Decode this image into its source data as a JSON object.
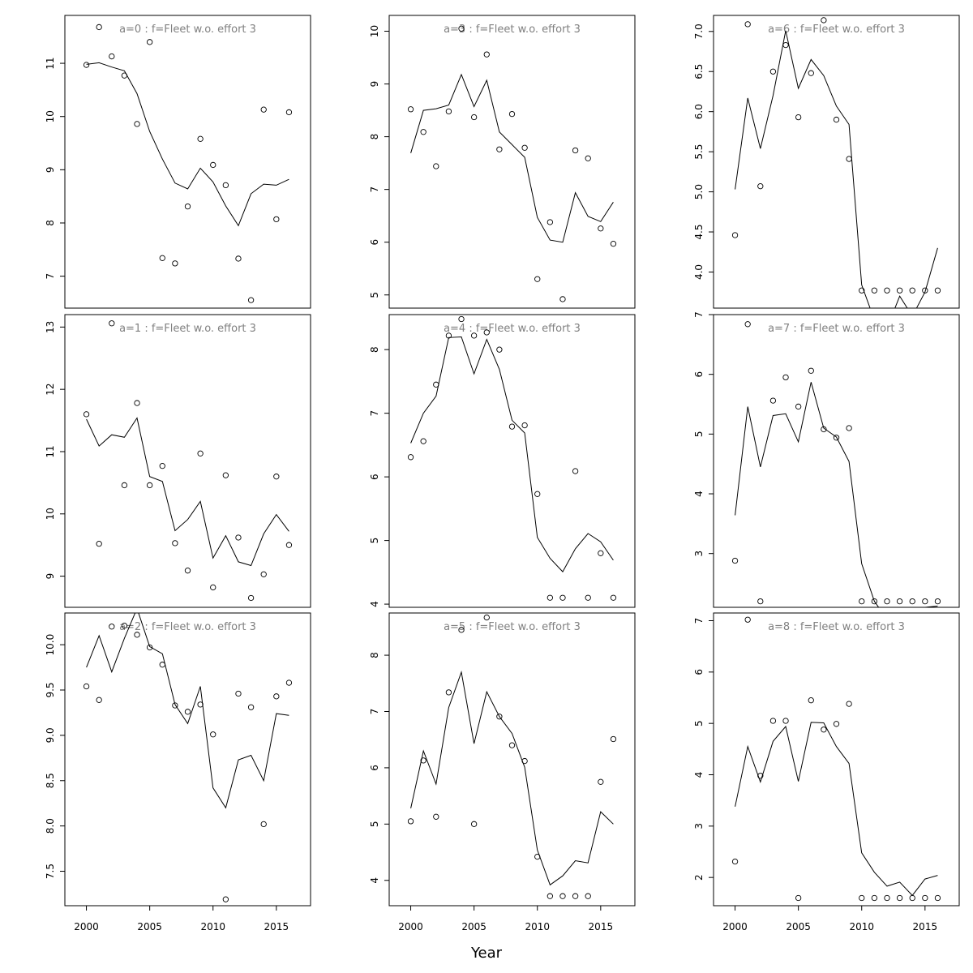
{
  "figure": {
    "xlabel": "Year"
  },
  "chart_data": [
    {
      "type": "scatter",
      "title": "a=0  :  f=Fleet w.o. effort 3",
      "x": [
        2000,
        2001,
        2002,
        2003,
        2004,
        2005,
        2006,
        2007,
        2008,
        2009,
        2010,
        2011,
        2012,
        2013,
        2014,
        2015,
        2016
      ],
      "ylim": [
        6.4,
        11.9
      ],
      "yticks": [
        7,
        8,
        9,
        10,
        11
      ],
      "xticks": [
        2000,
        2005,
        2010,
        2015
      ],
      "series": [
        {
          "kind": "points",
          "values": [
            10.97,
            11.68,
            11.13,
            10.77,
            9.86,
            11.4,
            7.34,
            7.24,
            8.31,
            9.58,
            9.09,
            8.71,
            7.33,
            6.55,
            10.13,
            8.07,
            10.08
          ]
        },
        {
          "kind": "line",
          "values": [
            10.98,
            11.01,
            10.93,
            10.86,
            10.43,
            9.72,
            9.2,
            8.75,
            8.64,
            9.03,
            8.77,
            8.32,
            7.95,
            8.55,
            8.73,
            8.71,
            8.82
          ]
        }
      ]
    },
    {
      "type": "scatter",
      "title": "a=1  :  f=Fleet w.o. effort 3",
      "x": [
        2000,
        2001,
        2002,
        2003,
        2004,
        2005,
        2006,
        2007,
        2008,
        2009,
        2010,
        2011,
        2012,
        2013,
        2014,
        2015,
        2016
      ],
      "ylim": [
        8.5,
        13.2
      ],
      "yticks": [
        9,
        10,
        11,
        12,
        13
      ],
      "xticks": [
        2000,
        2005,
        2010,
        2015
      ],
      "series": [
        {
          "kind": "points",
          "values": [
            11.6,
            9.52,
            13.06,
            10.46,
            11.78,
            10.46,
            10.77,
            9.53,
            9.09,
            10.97,
            8.82,
            10.62,
            9.62,
            8.65,
            9.03,
            10.6,
            9.5
          ]
        },
        {
          "kind": "line",
          "values": [
            11.52,
            11.09,
            11.27,
            11.23,
            11.54,
            10.6,
            10.52,
            9.73,
            9.91,
            10.2,
            9.29,
            9.65,
            9.23,
            9.17,
            9.68,
            9.99,
            9.72
          ]
        }
      ]
    },
    {
      "type": "scatter",
      "title": "a=2  :  f=Fleet w.o. effort 3",
      "x": [
        2000,
        2001,
        2002,
        2003,
        2004,
        2005,
        2006,
        2007,
        2008,
        2009,
        2010,
        2011,
        2012,
        2013,
        2014,
        2015,
        2016
      ],
      "ylim": [
        7.12,
        10.35
      ],
      "yticks": [
        7.5,
        8.0,
        8.5,
        9.0,
        9.5,
        10.0
      ],
      "xticks": [
        2000,
        2005,
        2010,
        2015
      ],
      "series": [
        {
          "kind": "points",
          "values": [
            9.54,
            9.39,
            10.2,
            10.21,
            10.11,
            9.97,
            9.78,
            9.33,
            9.26,
            9.34,
            9.01,
            7.19,
            9.46,
            9.31,
            8.02,
            9.43,
            9.58
          ]
        },
        {
          "kind": "line",
          "values": [
            9.75,
            10.1,
            9.7,
            10.07,
            10.4,
            9.98,
            9.9,
            9.34,
            9.13,
            9.54,
            8.42,
            8.2,
            8.73,
            8.78,
            8.5,
            9.24,
            9.22
          ]
        }
      ]
    },
    {
      "type": "scatter",
      "title": "a=3  :  f=Fleet w.o. effort 3",
      "x": [
        2000,
        2001,
        2002,
        2003,
        2004,
        2005,
        2006,
        2007,
        2008,
        2009,
        2010,
        2011,
        2012,
        2013,
        2014,
        2015,
        2016
      ],
      "ylim": [
        4.75,
        10.3
      ],
      "yticks": [
        5,
        6,
        7,
        8,
        9,
        10
      ],
      "xticks": [
        2000,
        2005,
        2010,
        2015
      ],
      "series": [
        {
          "kind": "points",
          "values": [
            8.52,
            8.09,
            7.44,
            8.48,
            10.05,
            8.37,
            9.56,
            7.76,
            8.43,
            7.79,
            5.3,
            6.38,
            4.92,
            7.74,
            7.59,
            6.26,
            5.97
          ]
        },
        {
          "kind": "line",
          "values": [
            7.69,
            8.5,
            8.53,
            8.6,
            9.18,
            8.57,
            9.07,
            8.09,
            7.85,
            7.61,
            6.47,
            6.04,
            6.0,
            6.94,
            6.49,
            6.39,
            6.76
          ]
        }
      ]
    },
    {
      "type": "scatter",
      "title": "a=4  :  f=Fleet w.o. effort 3",
      "x": [
        2000,
        2001,
        2002,
        2003,
        2004,
        2005,
        2006,
        2007,
        2008,
        2009,
        2010,
        2011,
        2012,
        2013,
        2014,
        2015,
        2016
      ],
      "ylim": [
        3.95,
        8.55
      ],
      "yticks": [
        4,
        5,
        6,
        7,
        8
      ],
      "xticks": [
        2000,
        2005,
        2010,
        2015
      ],
      "series": [
        {
          "kind": "points",
          "values": [
            6.31,
            6.56,
            7.45,
            8.22,
            8.48,
            8.22,
            8.27,
            8.0,
            6.79,
            6.81,
            5.73,
            4.1,
            4.1,
            6.09,
            4.1,
            4.8,
            4.1
          ]
        },
        {
          "kind": "line",
          "values": [
            6.53,
            7.0,
            7.27,
            8.19,
            8.2,
            7.62,
            8.16,
            7.69,
            6.89,
            6.69,
            5.05,
            4.72,
            4.51,
            4.87,
            5.11,
            4.98,
            4.69
          ]
        }
      ]
    },
    {
      "type": "scatter",
      "title": "a=5  :  f=Fleet w.o. effort 3",
      "x": [
        2000,
        2001,
        2002,
        2003,
        2004,
        2005,
        2006,
        2007,
        2008,
        2009,
        2010,
        2011,
        2012,
        2013,
        2014,
        2015,
        2016
      ],
      "ylim": [
        3.55,
        8.75
      ],
      "yticks": [
        4,
        5,
        6,
        7,
        8
      ],
      "xticks": [
        2000,
        2005,
        2010,
        2015
      ],
      "series": [
        {
          "kind": "points",
          "values": [
            5.05,
            6.13,
            5.13,
            7.34,
            8.45,
            5.0,
            8.67,
            6.91,
            6.4,
            6.12,
            4.42,
            3.72,
            3.72,
            3.72,
            3.72,
            5.75,
            6.51
          ]
        },
        {
          "kind": "line",
          "values": [
            5.28,
            6.3,
            5.71,
            7.07,
            7.7,
            6.43,
            7.35,
            6.91,
            6.61,
            6.01,
            4.54,
            3.92,
            4.08,
            4.35,
            4.31,
            5.22,
            5.0
          ]
        }
      ]
    },
    {
      "type": "scatter",
      "title": "a=6  :  f=Fleet w.o. effort 3",
      "x": [
        2000,
        2001,
        2002,
        2003,
        2004,
        2005,
        2006,
        2007,
        2008,
        2009,
        2010,
        2011,
        2012,
        2013,
        2014,
        2015,
        2016
      ],
      "ylim": [
        3.55,
        7.2
      ],
      "yticks": [
        4.0,
        4.5,
        5.0,
        5.5,
        6.0,
        6.5,
        7.0
      ],
      "xticks": [
        2000,
        2005,
        2010,
        2015
      ],
      "series": [
        {
          "kind": "points",
          "values": [
            4.46,
            7.09,
            5.07,
            6.5,
            6.83,
            5.93,
            6.48,
            7.14,
            5.9,
            5.41,
            3.77,
            3.77,
            3.77,
            3.77,
            3.77,
            3.77,
            3.77
          ]
        },
        {
          "kind": "line",
          "values": [
            5.03,
            6.17,
            5.54,
            6.2,
            7.01,
            6.29,
            6.65,
            6.45,
            6.07,
            5.84,
            3.84,
            3.4,
            3.3,
            3.7,
            3.45,
            3.75,
            4.3
          ]
        }
      ]
    },
    {
      "type": "scatter",
      "title": "a=7  :  f=Fleet w.o. effort 3",
      "x": [
        2000,
        2001,
        2002,
        2003,
        2004,
        2005,
        2006,
        2007,
        2008,
        2009,
        2010,
        2011,
        2012,
        2013,
        2014,
        2015,
        2016
      ],
      "ylim": [
        2.1,
        7.0
      ],
      "yticks": [
        3,
        4,
        5,
        6,
        7
      ],
      "xticks": [
        2000,
        2005,
        2010,
        2015
      ],
      "series": [
        {
          "kind": "points",
          "values": [
            2.88,
            6.84,
            2.2,
            5.56,
            5.95,
            5.46,
            6.06,
            5.08,
            4.94,
            5.1,
            2.2,
            2.2,
            2.2,
            2.2,
            2.2,
            2.2,
            2.2
          ]
        },
        {
          "kind": "line",
          "values": [
            3.64,
            5.46,
            4.45,
            5.31,
            5.34,
            4.87,
            5.87,
            5.1,
            4.95,
            4.54,
            2.83,
            2.2,
            1.9,
            1.9,
            2.0,
            2.1,
            2.12
          ]
        }
      ]
    },
    {
      "type": "scatter",
      "title": "a=8  :  f=Fleet w.o. effort 3",
      "x": [
        2000,
        2001,
        2002,
        2003,
        2004,
        2005,
        2006,
        2007,
        2008,
        2009,
        2010,
        2011,
        2012,
        2013,
        2014,
        2015,
        2016
      ],
      "ylim": [
        1.45,
        7.15
      ],
      "yticks": [
        2,
        3,
        4,
        5,
        6,
        7
      ],
      "xticks": [
        2000,
        2005,
        2010,
        2015
      ],
      "series": [
        {
          "kind": "points",
          "values": [
            2.31,
            7.02,
            3.98,
            5.05,
            5.05,
            1.6,
            5.45,
            4.88,
            4.99,
            5.38,
            1.6,
            1.6,
            1.6,
            1.6,
            1.6,
            1.6,
            1.6
          ]
        },
        {
          "kind": "line",
          "values": [
            3.38,
            4.55,
            3.86,
            4.65,
            4.94,
            3.87,
            5.02,
            5.01,
            4.55,
            4.22,
            2.48,
            2.1,
            1.83,
            1.91,
            1.65,
            1.97,
            2.04
          ]
        }
      ]
    }
  ]
}
